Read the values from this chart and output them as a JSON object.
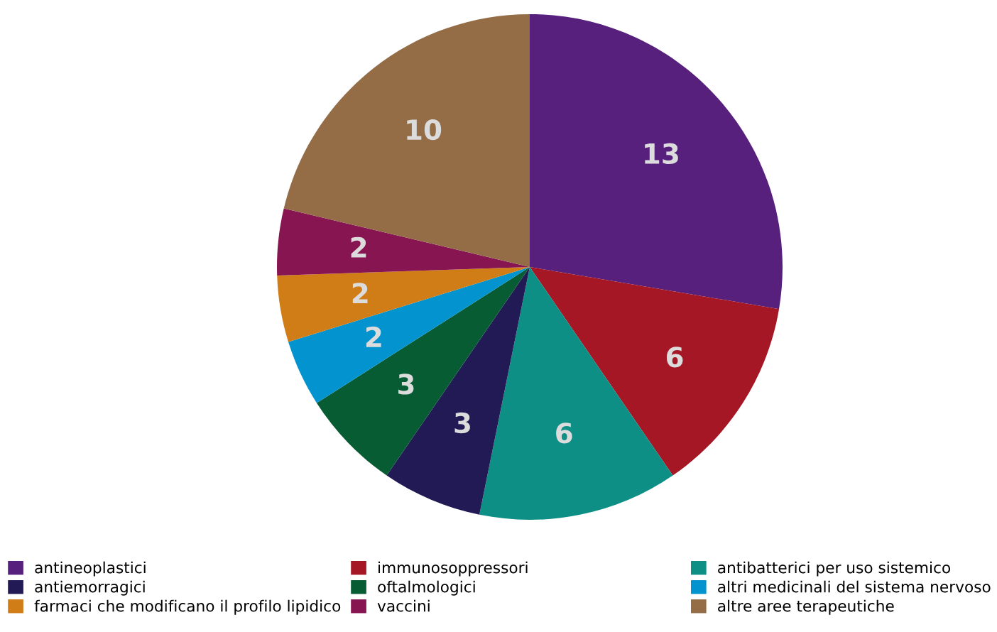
{
  "chart_data": {
    "type": "pie",
    "categories": [
      "antineoplastici",
      "immunosoppressori",
      "antibatterici per uso sistemico",
      "antiemorragici",
      "oftalmologici",
      "altri medicinali del sistema nervoso",
      "farmaci che modificano il profilo lipidico",
      "vaccini",
      "altre aree terapeutiche"
    ],
    "values": [
      13,
      6,
      6,
      3,
      3,
      2,
      2,
      2,
      10
    ],
    "colors": [
      "#58207d",
      "#a51724",
      "#0e8f86",
      "#211a55",
      "#085c33",
      "#0394cf",
      "#d07c17",
      "#871552",
      "#946d47"
    ],
    "data_labels": true,
    "legend": "bottom"
  }
}
